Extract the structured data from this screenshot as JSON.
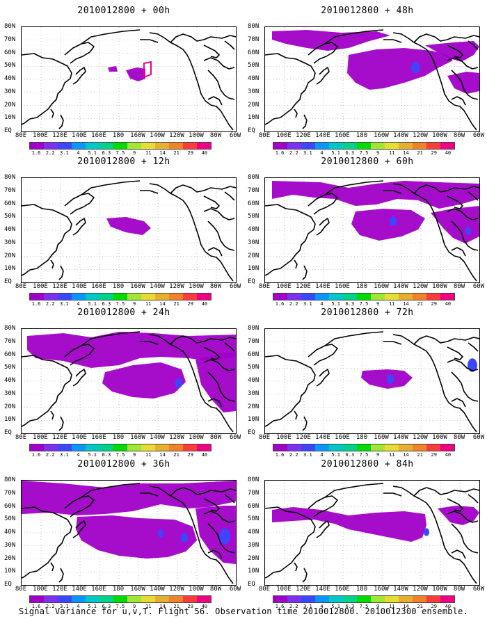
{
  "caption": "Signal Variance for u,v,T. Flight 56. Observation time 2010012800. 2010012300 ensemble.",
  "axes": {
    "lat_labels": [
      "80N",
      "70N",
      "60N",
      "50N",
      "40N",
      "30N",
      "20N",
      "10N",
      "EQ"
    ],
    "lon_labels": [
      "80E",
      "100E",
      "120E",
      "140E",
      "160E",
      "180",
      "160W",
      "140W",
      "120W",
      "100W",
      "80W",
      "60W"
    ]
  },
  "colorbar": {
    "levels": [
      "1.6",
      "2.2",
      "3.1",
      "4",
      "5.1",
      "6.3",
      "7.5",
      "9",
      "11",
      "14",
      "21",
      "29",
      "40"
    ],
    "colors": [
      "#a000c8",
      "#7d30f0",
      "#3c46ff",
      "#0a96ff",
      "#00c8c8",
      "#00d28c",
      "#00dc00",
      "#a0e632",
      "#e6dc32",
      "#e6af2d",
      "#f08228",
      "#fa3c3c",
      "#f00082"
    ]
  },
  "panels": [
    {
      "title": "2010012800 + 00h",
      "shade": "#a000c8"
    },
    {
      "title": "2010012800 + 48h",
      "shade": "#a000c8"
    },
    {
      "title": "2010012800 + 12h",
      "shade": "#a000c8"
    },
    {
      "title": "2010012800 + 60h",
      "shade": "#a000c8"
    },
    {
      "title": "2010012800 + 24h",
      "shade": "#a000c8"
    },
    {
      "title": "2010012800 + 72h",
      "shade": "#a000c8"
    },
    {
      "title": "2010012800 + 36h",
      "shade": "#a000c8"
    },
    {
      "title": "2010012800 + 84h",
      "shade": "#a000c8"
    }
  ]
}
